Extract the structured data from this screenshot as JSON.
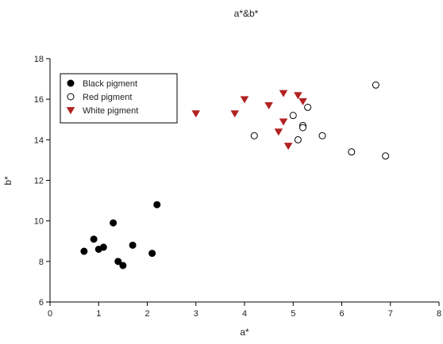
{
  "chart_data": {
    "type": "scatter",
    "title": "a*&b*",
    "xlabel": "a*",
    "ylabel": "b*",
    "xlim": [
      0,
      8
    ],
    "ylim": [
      6,
      18
    ],
    "xticks": [
      0,
      1,
      2,
      3,
      4,
      5,
      6,
      7,
      8
    ],
    "yticks": [
      6,
      8,
      10,
      12,
      14,
      16,
      18
    ],
    "grid": false,
    "legend_position": "top-left",
    "series": [
      {
        "name": "Black pigment",
        "marker": "filled-circle",
        "color": "#000000",
        "points": [
          {
            "x": 0.7,
            "y": 8.5
          },
          {
            "x": 0.9,
            "y": 9.1
          },
          {
            "x": 1.0,
            "y": 8.6
          },
          {
            "x": 1.1,
            "y": 8.7
          },
          {
            "x": 1.3,
            "y": 9.9
          },
          {
            "x": 1.4,
            "y": 8.0
          },
          {
            "x": 1.5,
            "y": 7.8
          },
          {
            "x": 1.7,
            "y": 8.8
          },
          {
            "x": 2.1,
            "y": 8.4
          },
          {
            "x": 2.2,
            "y": 10.8
          }
        ]
      },
      {
        "name": "Red pigment",
        "marker": "open-circle",
        "color": "#000000",
        "points": [
          {
            "x": 4.2,
            "y": 14.2
          },
          {
            "x": 5.0,
            "y": 15.2
          },
          {
            "x": 5.1,
            "y": 14.0
          },
          {
            "x": 5.2,
            "y": 14.7
          },
          {
            "x": 5.2,
            "y": 14.6
          },
          {
            "x": 5.3,
            "y": 15.6
          },
          {
            "x": 5.6,
            "y": 14.2
          },
          {
            "x": 6.2,
            "y": 13.4
          },
          {
            "x": 6.7,
            "y": 16.7
          },
          {
            "x": 6.9,
            "y": 13.2
          }
        ]
      },
      {
        "name": "White pigment",
        "marker": "triangle-down",
        "color": "#b22222",
        "points": [
          {
            "x": 3.0,
            "y": 15.3
          },
          {
            "x": 3.8,
            "y": 15.3
          },
          {
            "x": 4.0,
            "y": 16.0
          },
          {
            "x": 4.5,
            "y": 15.7
          },
          {
            "x": 4.7,
            "y": 14.4
          },
          {
            "x": 4.8,
            "y": 16.3
          },
          {
            "x": 4.8,
            "y": 14.9
          },
          {
            "x": 4.9,
            "y": 13.7
          },
          {
            "x": 5.1,
            "y": 16.2
          },
          {
            "x": 5.2,
            "y": 15.9
          }
        ]
      }
    ]
  }
}
